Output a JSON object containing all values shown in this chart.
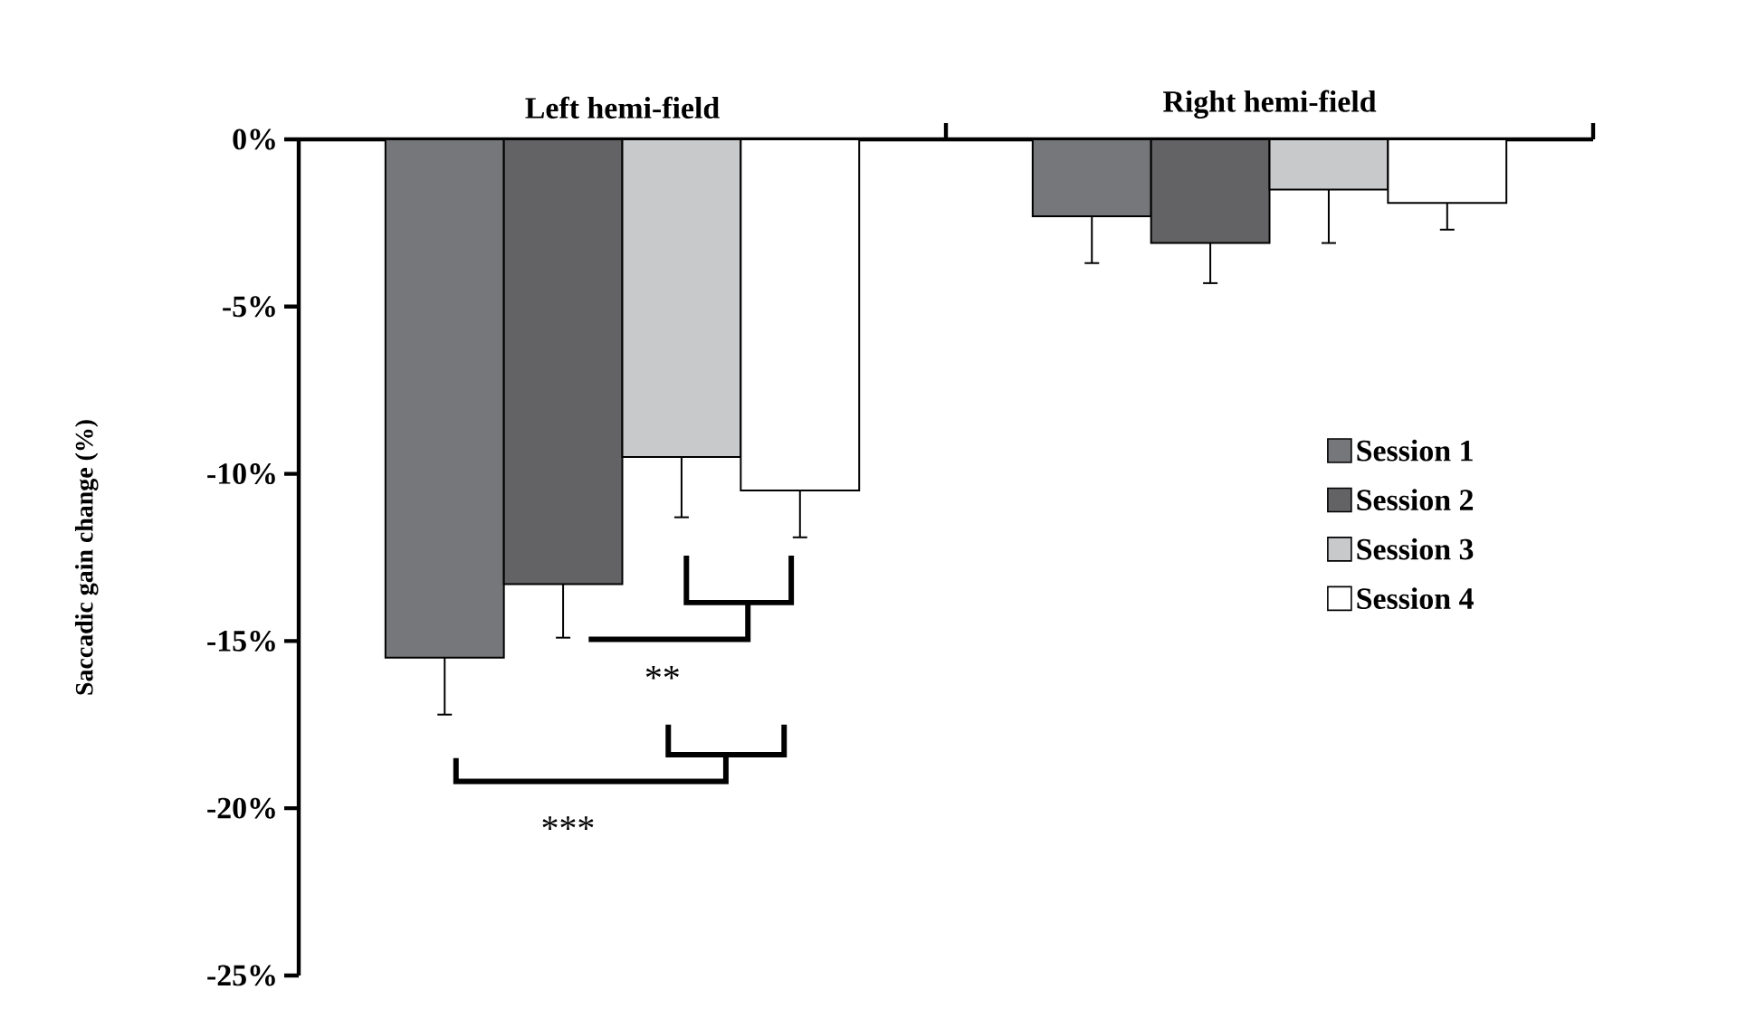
{
  "chart_data": {
    "type": "bar",
    "ylabel": "Saccadic gain change (%)",
    "categories": [
      "Left hemi-field",
      "Right hemi-field"
    ],
    "series": [
      {
        "name": "Session 1",
        "color": "#76777b",
        "values": [
          -15.5,
          -2.3
        ],
        "errors": [
          1.7,
          1.4
        ]
      },
      {
        "name": "Session 2",
        "color": "#636365",
        "values": [
          -13.3,
          -3.1
        ],
        "errors": [
          1.6,
          1.2
        ]
      },
      {
        "name": "Session 3",
        "color": "#c8c9cb",
        "values": [
          -9.5,
          -1.5
        ],
        "errors": [
          1.8,
          1.6
        ]
      },
      {
        "name": "Session 4",
        "color": "#ffffff",
        "values": [
          -10.5,
          -1.9
        ],
        "errors": [
          1.4,
          0.8
        ]
      }
    ],
    "ylim": [
      -25,
      0
    ],
    "yticks": [
      {
        "value": 0,
        "label": "0%"
      },
      {
        "value": -5,
        "label": "-5%"
      },
      {
        "value": -10,
        "label": "-10%"
      },
      {
        "value": -15,
        "label": "-15%"
      },
      {
        "value": -20,
        "label": "-20%"
      },
      {
        "value": -25,
        "label": "-25%"
      }
    ],
    "annotations": [
      "**",
      "***"
    ],
    "legend": "right",
    "grid": false
  }
}
